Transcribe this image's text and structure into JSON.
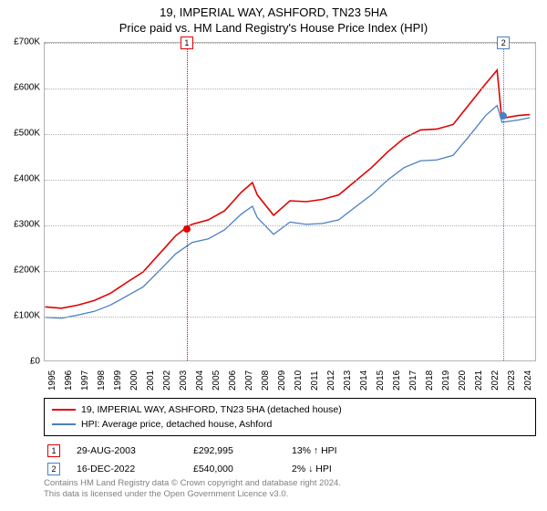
{
  "title": "19, IMPERIAL WAY, ASHFORD, TN23 5HA",
  "subtitle": "Price paid vs. HM Land Registry's House Price Index (HPI)",
  "chart": {
    "type": "line",
    "background_color": "#ffffff",
    "grid_color": "#b0b0b0",
    "border_color": "rgba(0,0,0,0.3)",
    "ylim": [
      0,
      700000
    ],
    "ytick_step": 100000,
    "y_ticks": [
      "£0",
      "£100K",
      "£200K",
      "£300K",
      "£400K",
      "£500K",
      "£600K",
      "£700K"
    ],
    "xlim": [
      1995,
      2025
    ],
    "x_ticks": [
      1995,
      1996,
      1997,
      1998,
      1999,
      2000,
      2001,
      2002,
      2003,
      2004,
      2005,
      2006,
      2007,
      2008,
      2009,
      2010,
      2011,
      2012,
      2013,
      2014,
      2015,
      2016,
      2017,
      2018,
      2019,
      2020,
      2021,
      2022,
      2023,
      2024
    ],
    "series": [
      {
        "name": "19, IMPERIAL WAY, ASHFORD, TN23 5HA (detached house)",
        "color": "#e20000",
        "line_width": 1.6,
        "data": [
          [
            1995,
            118
          ],
          [
            1996,
            115
          ],
          [
            1997,
            122
          ],
          [
            1998,
            132
          ],
          [
            1999,
            148
          ],
          [
            2000,
            172
          ],
          [
            2001,
            195
          ],
          [
            2002,
            235
          ],
          [
            2003,
            275
          ],
          [
            2003.66,
            293
          ],
          [
            2004,
            300
          ],
          [
            2005,
            310
          ],
          [
            2006,
            330
          ],
          [
            2007,
            370
          ],
          [
            2007.7,
            392
          ],
          [
            2008,
            365
          ],
          [
            2009,
            320
          ],
          [
            2010,
            352
          ],
          [
            2011,
            350
          ],
          [
            2012,
            355
          ],
          [
            2013,
            365
          ],
          [
            2014,
            395
          ],
          [
            2015,
            425
          ],
          [
            2016,
            460
          ],
          [
            2017,
            490
          ],
          [
            2018,
            508
          ],
          [
            2019,
            510
          ],
          [
            2020,
            520
          ],
          [
            2021,
            565
          ],
          [
            2022,
            610
          ],
          [
            2022.7,
            640
          ],
          [
            2022.96,
            540
          ],
          [
            2023.2,
            535
          ],
          [
            2024,
            540
          ],
          [
            2024.7,
            542
          ]
        ]
      },
      {
        "name": "HPI: Average price, detached house, Ashford",
        "color": "#4a7fc4",
        "line_width": 1.3,
        "data": [
          [
            1995,
            95
          ],
          [
            1996,
            93
          ],
          [
            1997,
            100
          ],
          [
            1998,
            108
          ],
          [
            1999,
            122
          ],
          [
            2000,
            142
          ],
          [
            2001,
            162
          ],
          [
            2002,
            198
          ],
          [
            2003,
            235
          ],
          [
            2004,
            260
          ],
          [
            2005,
            268
          ],
          [
            2006,
            288
          ],
          [
            2007,
            322
          ],
          [
            2007.7,
            340
          ],
          [
            2008,
            315
          ],
          [
            2009,
            278
          ],
          [
            2010,
            305
          ],
          [
            2011,
            300
          ],
          [
            2012,
            302
          ],
          [
            2013,
            310
          ],
          [
            2014,
            338
          ],
          [
            2015,
            365
          ],
          [
            2016,
            398
          ],
          [
            2017,
            425
          ],
          [
            2018,
            440
          ],
          [
            2019,
            442
          ],
          [
            2020,
            452
          ],
          [
            2021,
            495
          ],
          [
            2022,
            540
          ],
          [
            2022.7,
            562
          ],
          [
            2023,
            525
          ],
          [
            2024,
            530
          ],
          [
            2024.7,
            535
          ]
        ]
      }
    ],
    "sale_markers": [
      {
        "n": "1",
        "color": "#e20000",
        "year": 2003.66,
        "value": 293
      },
      {
        "n": "2",
        "color": "#4a7fc4",
        "year": 2022.96,
        "value": 540
      }
    ]
  },
  "legend": {
    "items": [
      {
        "color": "#e20000",
        "label": "19, IMPERIAL WAY, ASHFORD, TN23 5HA (detached house)"
      },
      {
        "color": "#4a7fc4",
        "label": "HPI: Average price, detached house, Ashford"
      }
    ]
  },
  "sales": [
    {
      "n": "1",
      "color": "#e20000",
      "date": "29-AUG-2003",
      "price": "£292,995",
      "pct": "13% ↑ HPI"
    },
    {
      "n": "2",
      "color": "#4a7fc4",
      "date": "16-DEC-2022",
      "price": "£540,000",
      "pct": "2% ↓ HPI"
    }
  ],
  "attribution": {
    "line1": "Contains HM Land Registry data © Crown copyright and database right 2024.",
    "line2": "This data is licensed under the Open Government Licence v3.0."
  },
  "fonts": {
    "title_size": 13,
    "tick_size": 10,
    "legend_size": 10.5,
    "attrib_size": 9.5
  }
}
